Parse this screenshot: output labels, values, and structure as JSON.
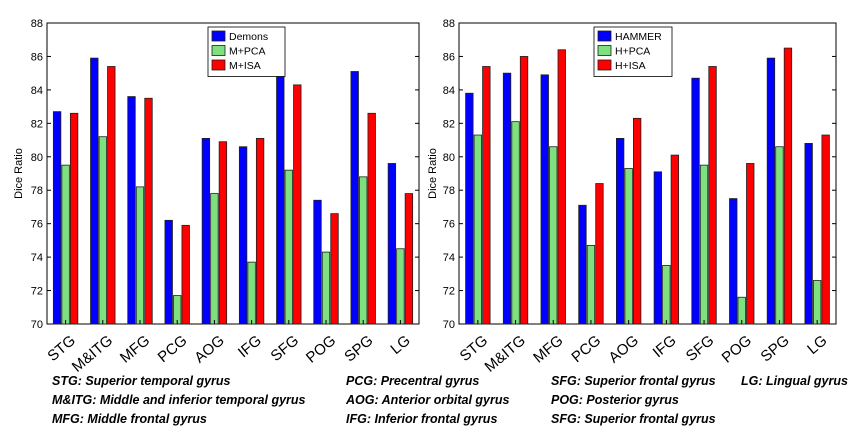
{
  "chart_data": [
    {
      "type": "bar",
      "categories": [
        "STG",
        "M&ITG",
        "MFG",
        "PCG",
        "AOG",
        "IFG",
        "SFG",
        "POG",
        "SPG",
        "LG"
      ],
      "series": [
        {
          "name": "Demons",
          "color": "#0000ff",
          "values": [
            82.7,
            85.9,
            83.6,
            76.2,
            81.1,
            80.6,
            85.1,
            77.4,
            85.1,
            79.6
          ]
        },
        {
          "name": "M+PCA",
          "color": "#7fe07f",
          "values": [
            79.5,
            81.2,
            78.2,
            71.7,
            77.8,
            73.7,
            79.2,
            74.3,
            78.8,
            74.5
          ]
        },
        {
          "name": "M+ISA",
          "color": "#ff0000",
          "values": [
            82.6,
            85.4,
            83.5,
            75.9,
            80.9,
            81.1,
            84.3,
            76.6,
            82.6,
            77.8
          ]
        }
      ],
      "title": "",
      "xlabel": "",
      "ylabel": "Dice Ratio",
      "ylim": [
        70,
        88
      ],
      "yticks": [
        "70",
        "72",
        "74",
        "76",
        "78",
        "80",
        "82",
        "84",
        "86",
        "88"
      ],
      "legend_position": "top-right",
      "grid": false
    },
    {
      "type": "bar",
      "categories": [
        "STG",
        "M&ITG",
        "MFG",
        "PCG",
        "AOG",
        "IFG",
        "SFG",
        "POG",
        "SPG",
        "LG"
      ],
      "series": [
        {
          "name": "HAMMER",
          "color": "#0000ff",
          "values": [
            83.8,
            85.0,
            84.9,
            77.1,
            81.1,
            79.1,
            84.7,
            77.5,
            85.9,
            80.8
          ]
        },
        {
          "name": "H+PCA",
          "color": "#7fe07f",
          "values": [
            81.3,
            82.1,
            80.6,
            74.7,
            79.3,
            73.5,
            79.5,
            71.6,
            80.6,
            72.6
          ]
        },
        {
          "name": "H+ISA",
          "color": "#ff0000",
          "values": [
            85.4,
            86.0,
            86.4,
            78.4,
            82.3,
            80.1,
            85.4,
            79.6,
            86.5,
            81.3
          ]
        }
      ],
      "title": "",
      "xlabel": "",
      "ylabel": "Dice Ratio",
      "ylim": [
        70,
        88
      ],
      "yticks": [
        "70",
        "72",
        "74",
        "76",
        "78",
        "80",
        "82",
        "84",
        "86",
        "88"
      ],
      "legend_position": "top-left",
      "grid": false
    }
  ],
  "captions": {
    "col1": [
      "STG: Superior temporal gyrus",
      "M&ITG: Middle and inferior temporal gyrus",
      "MFG: Middle frontal gyrus"
    ],
    "col2": [
      "PCG: Precentral gyrus",
      "AOG: Anterior orbital gyrus",
      "IFG: Inferior frontal gyrus"
    ],
    "col3": [
      "SFG: Superior frontal gyrus",
      "POG: Posterior gyrus",
      "SFG: Superior frontal gyrus"
    ],
    "col4": [
      "LG: Lingual gyrus"
    ]
  }
}
